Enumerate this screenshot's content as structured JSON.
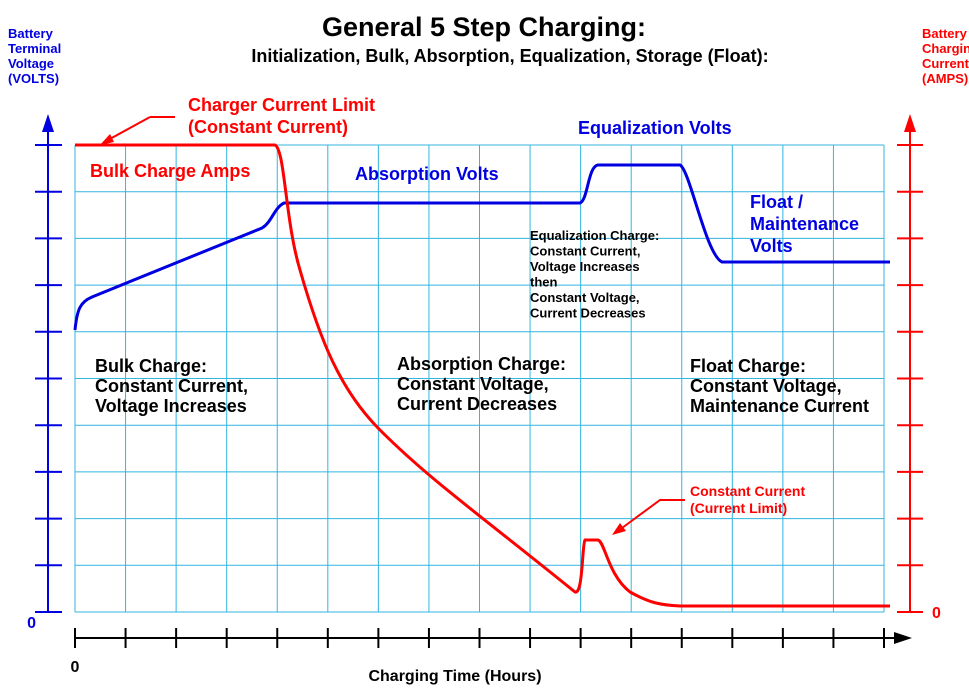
{
  "header": {
    "title": "General 5 Step Charging:",
    "subtitle": "Initialization, Bulk, Absorption, Equalization, Storage (Float):"
  },
  "left_axis": {
    "label": [
      "Battery",
      "Terminal",
      "Voltage",
      "(VOLTS)"
    ],
    "zero": "0"
  },
  "right_axis": {
    "label": [
      "Battery",
      "Charging",
      "Current",
      "(AMPS)"
    ],
    "zero": "0"
  },
  "time_axis": {
    "label": "Charging Time (Hours)",
    "zero": "0"
  },
  "annotations": {
    "current_limit": [
      "Charger Current Limit",
      "(Constant Current)"
    ],
    "bulk_amps": "Bulk Charge Amps",
    "absorption_volts": "Absorption Volts",
    "equalization_volts": "Equalization Volts",
    "float_volts": [
      "Float /",
      "Maintenance",
      "Volts"
    ],
    "equalization_charge": [
      "Equalization Charge:",
      "Constant Current,",
      "Voltage Increases",
      "then",
      "Constant Voltage,",
      "Current Decreases"
    ],
    "bulk_charge": [
      "Bulk Charge:",
      "Constant Current,",
      "Voltage Increases"
    ],
    "absorption_charge": [
      "Absorption Charge:",
      "Constant Voltage,",
      "Current Decreases"
    ],
    "float_charge": [
      "Float Charge:",
      "Constant Voltage,",
      "Maintenance Current"
    ],
    "constant_current": [
      "Constant Current",
      "(Current Limit)"
    ]
  }
}
